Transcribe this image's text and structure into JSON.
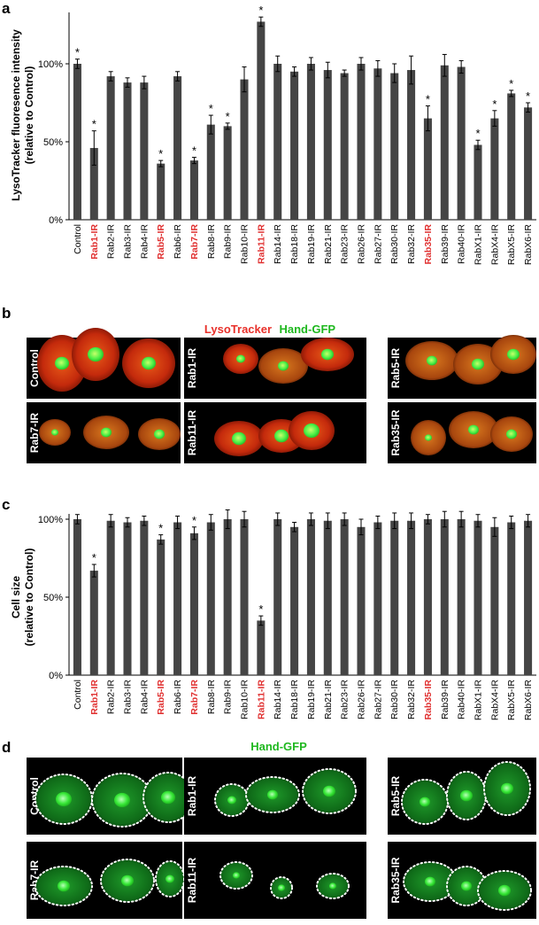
{
  "panels": {
    "a": "a",
    "b": "b",
    "c": "c",
    "d": "d"
  },
  "panel_b_title": {
    "red": "LysoTracker",
    "green": "Hand-GFP"
  },
  "panel_d_title": "Hand-GFP",
  "micrographs_b": [
    "Control",
    "Rab1-IR",
    "Rab5-IR",
    "Rab7-IR",
    "Rab11-IR",
    "Rab35-IR"
  ],
  "micrographs_d": [
    "Control",
    "Rab1-IR",
    "Rab5-IR",
    "Rab7-IR",
    "Rab11-IR",
    "Rab35-IR"
  ],
  "colors": {
    "bar": "#454545",
    "highlight": "#e03030",
    "lyso": "#d42a10",
    "gfp": "#2ad42a"
  },
  "chart_data": [
    {
      "type": "bar",
      "ylabel": [
        "LysoTracker fluoresence intensity",
        "(relative to Control)"
      ],
      "ylim": [
        0,
        130
      ],
      "yticks": [
        "0%",
        "50%",
        "100%"
      ],
      "categories": [
        "Control",
        "Rab1-IR",
        "Rab2-IR",
        "Rab3-IR",
        "Rab4-IR",
        "Rab5-IR",
        "Rab6-IR",
        "Rab7-IR",
        "Rab8-IR",
        "Rab9-IR",
        "Rab10-IR",
        "Rab11-IR",
        "Rab14-IR",
        "Rab18-IR",
        "Rab19-IR",
        "Rab21-IR",
        "Rab23-IR",
        "Rab26-IR",
        "Rab27-IR",
        "Rab30-IR",
        "Rab32-IR",
        "Rab35-IR",
        "Rab39-IR",
        "Rab40-IR",
        "RabX1-IR",
        "RabX4-IR",
        "RabX5-IR",
        "RabX6-IR"
      ],
      "highlighted": [
        "Rab1-IR",
        "Rab5-IR",
        "Rab7-IR",
        "Rab11-IR",
        "Rab35-IR"
      ],
      "values": [
        100,
        46,
        92,
        88,
        88,
        36,
        92,
        38,
        61,
        60,
        90,
        127,
        100,
        95,
        100,
        96,
        94,
        100,
        97,
        94,
        96,
        65,
        99,
        98,
        48,
        65,
        81,
        72
      ],
      "errors": [
        3,
        11,
        3,
        3,
        4,
        2,
        3,
        2,
        6,
        2,
        8,
        3,
        5,
        3,
        4,
        5,
        2,
        4,
        5,
        6,
        9,
        8,
        7,
        4,
        3,
        5,
        2,
        3
      ],
      "significant": [
        "*",
        "*",
        "",
        "",
        "",
        "*",
        "",
        "*",
        "*",
        "*",
        "",
        "*",
        "",
        "",
        "",
        "",
        "",
        "",
        "",
        "",
        "",
        "*",
        "",
        "",
        "*",
        "*",
        "*",
        "*"
      ]
    },
    {
      "type": "bar",
      "ylabel": [
        "Cell size",
        "(relative to Control)"
      ],
      "ylim": [
        0,
        110
      ],
      "yticks": [
        "0%",
        "50%",
        "100%"
      ],
      "categories": [
        "Control",
        "Rab1-IR",
        "Rab2-IR",
        "Rab3-IR",
        "Rab4-IR",
        "Rab5-IR",
        "Rab6-IR",
        "Rab7-IR",
        "Rab8-IR",
        "Rab9-IR",
        "Rab10-IR",
        "Rab11-IR",
        "Rab14-IR",
        "Rab18-IR",
        "Rab19-IR",
        "Rab21-IR",
        "Rab23-IR",
        "Rab26-IR",
        "Rab27-IR",
        "Rab30-IR",
        "Rab32-IR",
        "Rab35-IR",
        "Rab39-IR",
        "Rab40-IR",
        "RabX1-IR",
        "RabX4-IR",
        "RabX5-IR",
        "RabX6-IR"
      ],
      "highlighted": [
        "Rab1-IR",
        "Rab5-IR",
        "Rab7-IR",
        "Rab11-IR",
        "Rab35-IR"
      ],
      "values": [
        100,
        67,
        99,
        98,
        99,
        87,
        98,
        91,
        98,
        100,
        100,
        35,
        100,
        95,
        100,
        99,
        100,
        95,
        98,
        99,
        99,
        100,
        100,
        100,
        99,
        95,
        98,
        99
      ],
      "errors": [
        3,
        4,
        4,
        3,
        3,
        3,
        4,
        4,
        5,
        6,
        5,
        3,
        4,
        3,
        4,
        5,
        4,
        5,
        4,
        5,
        5,
        3,
        5,
        5,
        4,
        6,
        4,
        4
      ],
      "significant": [
        "",
        "*",
        "",
        "",
        "",
        "*",
        "",
        "*",
        "",
        "",
        "",
        "*",
        "",
        "",
        "",
        "",
        "",
        "",
        "",
        "",
        "",
        "",
        "",
        "",
        "",
        "",
        "",
        ""
      ]
    }
  ]
}
